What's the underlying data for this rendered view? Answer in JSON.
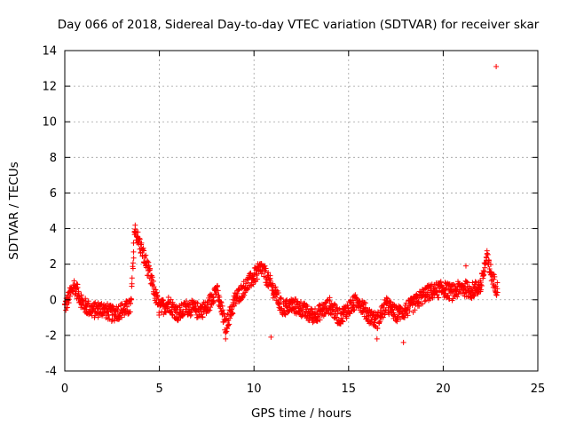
{
  "chart_data": {
    "type": "scatter",
    "title": "Day 066 of 2018, Sidereal Day-to-day VTEC variation (SDTVAR) for receiver skar",
    "xlabel": "GPS time / hours",
    "ylabel": "SDTVAR / TECUs",
    "xlim": [
      0,
      25
    ],
    "ylim": [
      -4,
      14
    ],
    "xticks": [
      0,
      5,
      10,
      15,
      20,
      25
    ],
    "yticks": [
      -4,
      -2,
      0,
      2,
      4,
      6,
      8,
      10,
      12,
      14
    ],
    "grid": true,
    "marker": "+",
    "color": "#ff0000",
    "series": [
      {
        "name": "SDTVAR",
        "approximate_trend": [
          {
            "x": 0.0,
            "y": -0.4
          },
          {
            "x": 0.5,
            "y": 0.8
          },
          {
            "x": 1.0,
            "y": -0.3
          },
          {
            "x": 1.5,
            "y": -0.6
          },
          {
            "x": 2.0,
            "y": -0.5
          },
          {
            "x": 2.5,
            "y": -0.8
          },
          {
            "x": 3.0,
            "y": -0.6
          },
          {
            "x": 3.5,
            "y": -0.4
          },
          {
            "x": 3.7,
            "y": 4.0
          },
          {
            "x": 4.0,
            "y": 3.0
          },
          {
            "x": 4.4,
            "y": 1.7
          },
          {
            "x": 5.0,
            "y": -0.5
          },
          {
            "x": 5.5,
            "y": -0.2
          },
          {
            "x": 6.0,
            "y": -0.8
          },
          {
            "x": 6.5,
            "y": -0.4
          },
          {
            "x": 7.0,
            "y": -0.6
          },
          {
            "x": 7.5,
            "y": -0.5
          },
          {
            "x": 8.0,
            "y": 0.6
          },
          {
            "x": 8.5,
            "y": -1.5
          },
          {
            "x": 9.0,
            "y": 0.0
          },
          {
            "x": 9.5,
            "y": 0.7
          },
          {
            "x": 10.0,
            "y": 1.3
          },
          {
            "x": 10.4,
            "y": 1.8
          },
          {
            "x": 10.8,
            "y": 1.0
          },
          {
            "x": 11.2,
            "y": 0.2
          },
          {
            "x": 11.5,
            "y": -0.5
          },
          {
            "x": 12.0,
            "y": -0.3
          },
          {
            "x": 12.5,
            "y": -0.5
          },
          {
            "x": 13.0,
            "y": -0.9
          },
          {
            "x": 13.5,
            "y": -0.7
          },
          {
            "x": 14.0,
            "y": -0.3
          },
          {
            "x": 14.5,
            "y": -1.0
          },
          {
            "x": 15.0,
            "y": -0.5
          },
          {
            "x": 15.5,
            "y": 0.0
          },
          {
            "x": 16.0,
            "y": -0.8
          },
          {
            "x": 16.5,
            "y": -1.2
          },
          {
            "x": 17.0,
            "y": -0.3
          },
          {
            "x": 17.5,
            "y": -0.8
          },
          {
            "x": 18.0,
            "y": -0.6
          },
          {
            "x": 18.5,
            "y": -0.2
          },
          {
            "x": 19.0,
            "y": 0.3
          },
          {
            "x": 19.5,
            "y": 0.5
          },
          {
            "x": 20.0,
            "y": 0.6
          },
          {
            "x": 20.5,
            "y": 0.4
          },
          {
            "x": 21.0,
            "y": 0.7
          },
          {
            "x": 21.5,
            "y": 0.5
          },
          {
            "x": 22.0,
            "y": 0.8
          },
          {
            "x": 22.3,
            "y": 2.4
          },
          {
            "x": 22.6,
            "y": 1.2
          },
          {
            "x": 22.9,
            "y": 0.5
          }
        ],
        "notable_points": [
          {
            "x": 22.8,
            "y": 13.1
          },
          {
            "x": 8.5,
            "y": -2.2
          },
          {
            "x": 17.9,
            "y": -2.4
          },
          {
            "x": 10.9,
            "y": -2.1
          },
          {
            "x": 16.5,
            "y": -2.2
          },
          {
            "x": 10.3,
            "y": 2.0
          },
          {
            "x": 21.2,
            "y": 1.9
          }
        ]
      }
    ]
  }
}
